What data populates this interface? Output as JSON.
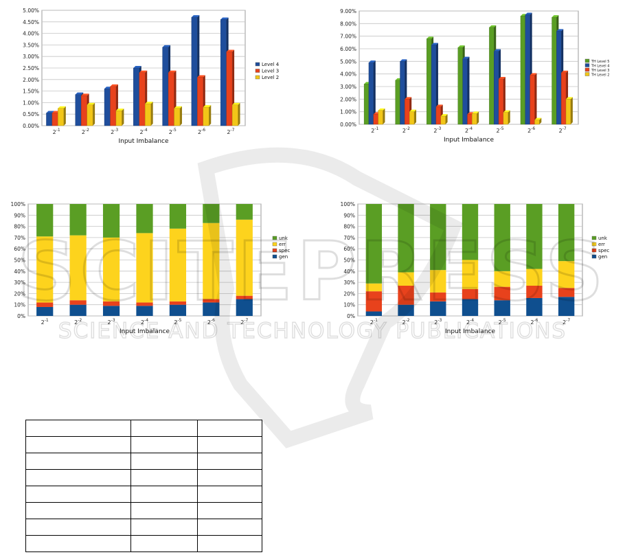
{
  "chart_data": [
    {
      "type": "bar",
      "categories": [
        "-1",
        "-2",
        "-3",
        "-4",
        "-5",
        "-6",
        "-7"
      ],
      "category_prefix": "2",
      "xlabel": "Input Imbalance",
      "ylabel": "",
      "ylim": [
        0,
        5
      ],
      "yticks": [
        "0.00%",
        "0.50%",
        "1.00%",
        "1.50%",
        "2.00%",
        "2.50%",
        "3.00%",
        "3.50%",
        "4.00%",
        "4.50%",
        "5.00%"
      ],
      "legend_position": "right",
      "series": [
        {
          "name": "Level 4",
          "color": "#1f4e9c",
          "values": [
            0.55,
            1.35,
            1.6,
            2.5,
            3.4,
            4.7,
            4.6
          ]
        },
        {
          "name": "Level 3",
          "color": "#e8421c",
          "values": [
            0.55,
            1.3,
            1.7,
            2.3,
            2.3,
            2.1,
            3.2
          ]
        },
        {
          "name": "Level 2",
          "color": "#f2c618",
          "values": [
            0.75,
            0.9,
            0.65,
            0.95,
            0.75,
            0.8,
            0.9
          ]
        }
      ]
    },
    {
      "type": "bar",
      "categories": [
        "-1",
        "-2",
        "-3",
        "-4",
        "-5",
        "-6",
        "-7"
      ],
      "category_prefix": "2",
      "xlabel": "Input Imbalance",
      "ylabel": "",
      "ylim": [
        0,
        9
      ],
      "yticks": [
        "0.00%",
        "1.00%",
        "2.00%",
        "3.00%",
        "4.00%",
        "5.00%",
        "6.00%",
        "7.00%",
        "8.00%",
        "9.00%"
      ],
      "legend_position": "right",
      "series": [
        {
          "name": "TH Level 5",
          "color": "#5a9e24",
          "values": [
            3.2,
            3.5,
            6.8,
            6.1,
            7.7,
            8.6,
            8.5
          ]
        },
        {
          "name": "TH Level 4",
          "color": "#1f4e9c",
          "values": [
            4.9,
            5.0,
            6.3,
            5.2,
            5.8,
            8.7,
            7.4
          ]
        },
        {
          "name": "TH Level 3",
          "color": "#e8421c",
          "values": [
            0.8,
            2.0,
            1.4,
            0.8,
            3.6,
            3.9,
            4.1
          ]
        },
        {
          "name": "TH Level 2",
          "color": "#f2c618",
          "values": [
            1.1,
            1.0,
            0.65,
            0.85,
            0.95,
            0.35,
            2.0
          ]
        }
      ]
    },
    {
      "type": "bar",
      "stacked": true,
      "categories": [
        "-1",
        "-2",
        "-3",
        "-4",
        "-5",
        "-6",
        "-7"
      ],
      "category_prefix": "2",
      "xlabel": "Input Imbalance",
      "ylabel": "",
      "ylim": [
        0,
        100
      ],
      "yticks": [
        "0%",
        "10%",
        "20%",
        "30%",
        "40%",
        "50%",
        "60%",
        "70%",
        "80%",
        "90%",
        "100%"
      ],
      "legend_position": "right",
      "series": [
        {
          "name": "gen",
          "color": "#0f4f8f",
          "values": [
            8,
            10,
            9,
            9,
            10,
            12,
            15
          ]
        },
        {
          "name": "spec",
          "color": "#e8421c",
          "values": [
            4,
            4,
            4,
            3,
            3,
            3,
            3
          ]
        },
        {
          "name": "err",
          "color": "#fdd31d",
          "values": [
            59,
            58,
            57,
            62,
            65,
            68,
            68
          ]
        },
        {
          "name": "unk",
          "color": "#5a9e24",
          "values": [
            29,
            28,
            30,
            26,
            22,
            17,
            14
          ]
        }
      ]
    },
    {
      "type": "bar",
      "stacked": true,
      "categories": [
        "-1",
        "-2",
        "-3",
        "-4",
        "-5",
        "-6",
        "-7"
      ],
      "category_prefix": "2",
      "xlabel": "Input Imbalance",
      "ylabel": "",
      "ylim": [
        0,
        100
      ],
      "yticks": [
        "0%",
        "10%",
        "20%",
        "30%",
        "40%",
        "50%",
        "60%",
        "70%",
        "80%",
        "90%",
        "100%"
      ],
      "legend_position": "right",
      "series": [
        {
          "name": "gen",
          "color": "#0f4f8f",
          "values": [
            4,
            10,
            13,
            15,
            14,
            16,
            17
          ]
        },
        {
          "name": "spec",
          "color": "#e8421c",
          "values": [
            18,
            17,
            8,
            9,
            12,
            11,
            8
          ]
        },
        {
          "name": "err",
          "color": "#fdd31d",
          "values": [
            7,
            12,
            20,
            26,
            14,
            15,
            24
          ]
        },
        {
          "name": "unk",
          "color": "#5a9e24",
          "values": [
            71,
            61,
            59,
            50,
            60,
            58,
            51
          ]
        }
      ]
    }
  ],
  "watermark": {
    "text": "SCITEPRESS",
    "subtitle": "SCIENCE AND TECHNOLOGY PUBLICATIONS"
  },
  "table": {
    "rows": 8,
    "cols": 3
  }
}
